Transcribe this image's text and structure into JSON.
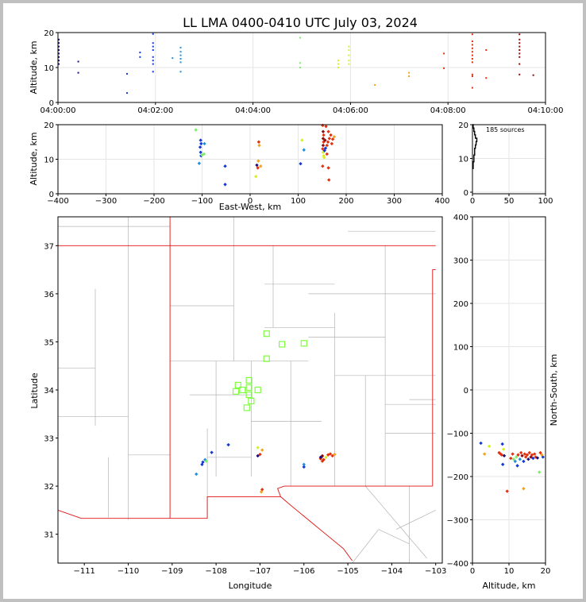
{
  "title": "LL LMA 0400-0410 UTC July 03, 2024",
  "colors": {
    "scheme": "time-rainbow",
    "ramp": [
      "#1a0f7a",
      "#1438d8",
      "#1f8fe0",
      "#7dec6a",
      "#d8f020",
      "#f4a11c",
      "#e4300e",
      "#8a0a0a"
    ],
    "state_lines": "#e01010",
    "county_lines": "#b4b4b4",
    "stations": "#7dff3c",
    "grid": "#e6e6e6"
  },
  "chart_data": [
    {
      "type": "scatter",
      "name": "altitude-vs-time",
      "xlabel": "",
      "ylabel": "Altitude, km",
      "xlim_seconds": [
        0,
        600
      ],
      "ylim": [
        0,
        20
      ],
      "xticks": [
        "04:00:00",
        "04:02:00",
        "04:04:00",
        "04:06:00",
        "04:08:00",
        "04:10:00"
      ],
      "yticks": [
        0,
        10,
        20
      ],
      "grid": true,
      "groups": [
        {
          "t": 1,
          "alt": [
            11,
            12,
            13,
            14,
            15,
            16,
            17,
            18
          ]
        },
        {
          "t": 25,
          "alt": [
            8.5,
            11.7
          ]
        },
        {
          "t": 85,
          "alt": [
            2.7,
            8.2
          ]
        },
        {
          "t": 101,
          "alt": [
            13,
            14.3
          ]
        },
        {
          "t": 117,
          "alt": [
            8.8,
            11,
            12,
            13,
            15,
            16,
            17,
            19.6
          ]
        },
        {
          "t": 141,
          "alt": [
            12.7
          ]
        },
        {
          "t": 151,
          "alt": [
            8.8,
            11.5,
            12.5,
            13.5,
            14.5,
            15.7
          ]
        },
        {
          "t": 298,
          "alt": [
            10,
            11.3,
            18.5
          ]
        },
        {
          "t": 345,
          "alt": [
            10,
            11,
            12
          ]
        },
        {
          "t": 358,
          "alt": [
            11,
            12,
            13.5,
            15,
            16
          ]
        },
        {
          "t": 390,
          "alt": [
            5
          ]
        },
        {
          "t": 432,
          "alt": [
            7.5,
            8.5
          ]
        },
        {
          "t": 475,
          "alt": [
            9.8,
            14
          ]
        },
        {
          "t": 510,
          "alt": [
            4.2,
            7.5,
            8,
            11.5,
            12.5,
            13.5,
            14.5,
            15.5,
            16.5,
            17.5,
            19.5
          ]
        },
        {
          "t": 527,
          "alt": [
            7,
            15
          ]
        },
        {
          "t": 568,
          "alt": [
            8,
            11,
            13,
            14,
            15,
            16,
            17,
            18,
            19.5
          ]
        },
        {
          "t": 585,
          "alt": [
            7.8
          ]
        }
      ]
    },
    {
      "type": "scatter",
      "name": "altitude-vs-east-west",
      "xlabel": "East-West, km",
      "ylabel": "Altitude, km",
      "xlim": [
        -400,
        400
      ],
      "ylim": [
        0,
        20
      ],
      "xticks": [
        -400,
        -300,
        -200,
        -100,
        0,
        100,
        200,
        300,
        400
      ],
      "yticks": [
        0,
        10,
        20
      ],
      "grid": true,
      "points": [
        {
          "x": -102,
          "y": 11,
          "t": 0.1
        },
        {
          "x": -103,
          "y": 12,
          "t": 0.1
        },
        {
          "x": -104,
          "y": 13.5,
          "t": 0.15
        },
        {
          "x": -102,
          "y": 14.5,
          "t": 0.2
        },
        {
          "x": -103,
          "y": 15.5,
          "t": 0.2
        },
        {
          "x": -95,
          "y": 14.5,
          "t": 0.25
        },
        {
          "x": -106,
          "y": 8.8,
          "t": 0.25
        },
        {
          "x": -100,
          "y": 11.2,
          "t": 0.4
        },
        {
          "x": -96,
          "y": 11.5,
          "t": 0.4
        },
        {
          "x": -113,
          "y": 18.5,
          "t": 0.4
        },
        {
          "x": -52,
          "y": 8,
          "t": 0.2
        },
        {
          "x": -52,
          "y": 2.7,
          "t": 0.15
        },
        {
          "x": 12,
          "y": 5,
          "t": 0.55
        },
        {
          "x": 14,
          "y": 8.3,
          "t": 0.05
        },
        {
          "x": 16,
          "y": 7.5,
          "t": 0.85
        },
        {
          "x": 17,
          "y": 9.5,
          "t": 0.7
        },
        {
          "x": 19,
          "y": 14,
          "t": 0.7
        },
        {
          "x": 18,
          "y": 15,
          "t": 0.9
        },
        {
          "x": 22,
          "y": 8,
          "t": 0.7
        },
        {
          "x": 105,
          "y": 8.7,
          "t": 0.2
        },
        {
          "x": 112,
          "y": 12.7,
          "t": 0.25
        },
        {
          "x": 108,
          "y": 15.5,
          "t": 0.5
        },
        {
          "x": 151,
          "y": 8,
          "t": 0.9
        },
        {
          "x": 153,
          "y": 11,
          "t": 0.5
        },
        {
          "x": 152,
          "y": 12,
          "t": 0.6
        },
        {
          "x": 151,
          "y": 13,
          "t": 0.9
        },
        {
          "x": 152,
          "y": 14,
          "t": 0.95
        },
        {
          "x": 153,
          "y": 15,
          "t": 0.9
        },
        {
          "x": 152,
          "y": 16,
          "t": 0.95
        },
        {
          "x": 153,
          "y": 17,
          "t": 0.9
        },
        {
          "x": 152,
          "y": 18,
          "t": 0.95
        },
        {
          "x": 151,
          "y": 19.8,
          "t": 0.85
        },
        {
          "x": 155,
          "y": 12.5,
          "t": 0.15
        },
        {
          "x": 157,
          "y": 13.2,
          "t": 0.1
        },
        {
          "x": 160,
          "y": 14,
          "t": 0.8
        },
        {
          "x": 162,
          "y": 15,
          "t": 0.8
        },
        {
          "x": 165,
          "y": 16,
          "t": 0.8
        },
        {
          "x": 168,
          "y": 17,
          "t": 0.8
        },
        {
          "x": 163,
          "y": 18,
          "t": 0.8
        },
        {
          "x": 158,
          "y": 19.5,
          "t": 0.8
        },
        {
          "x": 170,
          "y": 14.5,
          "t": 0.8
        },
        {
          "x": 172,
          "y": 15.8,
          "t": 0.8
        },
        {
          "x": 160,
          "y": 11.5,
          "t": 0.8
        },
        {
          "x": 163,
          "y": 7.5,
          "t": 0.8
        },
        {
          "x": 164,
          "y": 4,
          "t": 0.8
        },
        {
          "x": 175,
          "y": 16.5,
          "t": 0.75
        },
        {
          "x": 156,
          "y": 15.5,
          "t": 0.95
        },
        {
          "x": 154,
          "y": 10.5,
          "t": 0.55
        }
      ]
    },
    {
      "type": "histogram",
      "name": "altitude-histogram",
      "annotation": "185 sources",
      "xlim": [
        0,
        100
      ],
      "ylim": [
        0,
        20
      ],
      "xticks": [
        0,
        50,
        100
      ],
      "yticks": [
        0,
        10,
        20
      ],
      "grid": true,
      "bins": [
        {
          "alt": 7.5,
          "count": 1
        },
        {
          "alt": 8.5,
          "count": 1
        },
        {
          "alt": 9.5,
          "count": 2
        },
        {
          "alt": 10.5,
          "count": 2
        },
        {
          "alt": 11.5,
          "count": 3
        },
        {
          "alt": 12.5,
          "count": 3
        },
        {
          "alt": 13.5,
          "count": 4
        },
        {
          "alt": 14.5,
          "count": 5
        },
        {
          "alt": 15.5,
          "count": 6
        },
        {
          "alt": 16.5,
          "count": 4
        },
        {
          "alt": 17.5,
          "count": 3
        },
        {
          "alt": 18.5,
          "count": 2
        },
        {
          "alt": 19.5,
          "count": 1
        }
      ]
    },
    {
      "type": "map",
      "name": "plan-view",
      "xlabel": "Longitude",
      "ylabel": "Latitude",
      "xlim": [
        -111.6,
        -102.85
      ],
      "ylim": [
        30.4,
        37.6
      ],
      "xticks": [
        -111,
        -110,
        -109,
        -108,
        -107,
        -106,
        -105,
        -104,
        -103
      ],
      "yticks": [
        31,
        32,
        33,
        34,
        35,
        36,
        37
      ],
      "stations": [
        {
          "lon": -106.85,
          "lat": 35.17
        },
        {
          "lon": -106.5,
          "lat": 34.95
        },
        {
          "lon": -106.0,
          "lat": 34.97
        },
        {
          "lon": -106.85,
          "lat": 34.65
        },
        {
          "lon": -107.25,
          "lat": 34.2
        },
        {
          "lon": -107.5,
          "lat": 34.1
        },
        {
          "lon": -107.55,
          "lat": 33.97
        },
        {
          "lon": -107.4,
          "lat": 34.0
        },
        {
          "lon": -107.25,
          "lat": 34.05
        },
        {
          "lon": -107.05,
          "lat": 34.0
        },
        {
          "lon": -107.25,
          "lat": 33.9
        },
        {
          "lon": -107.2,
          "lat": 33.77
        },
        {
          "lon": -107.3,
          "lat": 33.63
        }
      ],
      "sources": [
        {
          "lon": -108.3,
          "lat": 32.5,
          "t": 0.1
        },
        {
          "lon": -108.32,
          "lat": 32.45,
          "t": 0.15
        },
        {
          "lon": -108.25,
          "lat": 32.55,
          "t": 0.35
        },
        {
          "lon": -108.22,
          "lat": 32.52,
          "t": 0.4
        },
        {
          "lon": -108.1,
          "lat": 32.7,
          "t": 0.2
        },
        {
          "lon": -108.45,
          "lat": 32.25,
          "t": 0.35
        },
        {
          "lon": -107.72,
          "lat": 32.86,
          "t": 0.15
        },
        {
          "lon": -107.05,
          "lat": 32.63,
          "t": 0.05
        },
        {
          "lon": -107.0,
          "lat": 32.66,
          "t": 0.85
        },
        {
          "lon": -106.95,
          "lat": 32.75,
          "t": 0.7
        },
        {
          "lon": -107.05,
          "lat": 32.8,
          "t": 0.55
        },
        {
          "lon": -106.95,
          "lat": 31.93,
          "t": 0.8
        },
        {
          "lon": -106.97,
          "lat": 31.88,
          "t": 0.75
        },
        {
          "lon": -106.0,
          "lat": 32.45,
          "t": 0.25
        },
        {
          "lon": -106.0,
          "lat": 32.4,
          "t": 0.2
        },
        {
          "lon": -105.6,
          "lat": 32.6,
          "t": 0.9
        },
        {
          "lon": -105.58,
          "lat": 32.63,
          "t": 0.95
        },
        {
          "lon": -105.62,
          "lat": 32.57,
          "t": 0.85
        },
        {
          "lon": -105.55,
          "lat": 32.55,
          "t": 0.9
        },
        {
          "lon": -105.58,
          "lat": 32.52,
          "t": 0.85
        },
        {
          "lon": -105.45,
          "lat": 32.65,
          "t": 0.8
        },
        {
          "lon": -105.4,
          "lat": 32.67,
          "t": 0.8
        },
        {
          "lon": -105.35,
          "lat": 32.63,
          "t": 0.8
        },
        {
          "lon": -105.3,
          "lat": 32.66,
          "t": 0.75
        },
        {
          "lon": -105.62,
          "lat": 32.6,
          "t": 0.05
        },
        {
          "lon": -105.5,
          "lat": 32.6,
          "t": 0.55
        }
      ]
    },
    {
      "type": "scatter",
      "name": "north-south-vs-altitude",
      "xlabel": "Altitude, km",
      "ylabel": "North-South, km",
      "xlim": [
        0,
        20
      ],
      "ylim": [
        -400,
        400
      ],
      "xticks": [
        0,
        10,
        20
      ],
      "yticks": [
        -400,
        -300,
        -200,
        -100,
        0,
        100,
        200,
        300,
        400
      ],
      "grid": true,
      "points": [
        {
          "x": 2.3,
          "y": -123,
          "t": 0.1
        },
        {
          "x": 3.3,
          "y": -148,
          "t": 0.75
        },
        {
          "x": 4.6,
          "y": -130,
          "t": 0.5
        },
        {
          "x": 7.3,
          "y": -145,
          "t": 0.8
        },
        {
          "x": 7.7,
          "y": -148,
          "t": 0.85
        },
        {
          "x": 8.0,
          "y": -150,
          "t": 0.9
        },
        {
          "x": 8.2,
          "y": -125,
          "t": 0.2
        },
        {
          "x": 8.3,
          "y": -172,
          "t": 0.2
        },
        {
          "x": 8.5,
          "y": -137,
          "t": 0.6
        },
        {
          "x": 8.7,
          "y": -152,
          "t": 0.05
        },
        {
          "x": 9.5,
          "y": -234,
          "t": 0.8
        },
        {
          "x": 10.5,
          "y": -158,
          "t": 0.85
        },
        {
          "x": 11.0,
          "y": -148,
          "t": 0.8
        },
        {
          "x": 11.3,
          "y": -160,
          "t": 0.4
        },
        {
          "x": 11.7,
          "y": -165,
          "t": 0.35
        },
        {
          "x": 12.0,
          "y": -155,
          "t": 0.45
        },
        {
          "x": 12.3,
          "y": -175,
          "t": 0.2
        },
        {
          "x": 12.5,
          "y": -150,
          "t": 0.9
        },
        {
          "x": 13.0,
          "y": -160,
          "t": 0.3
        },
        {
          "x": 13.3,
          "y": -145,
          "t": 0.8
        },
        {
          "x": 13.6,
          "y": -152,
          "t": 0.95
        },
        {
          "x": 14.0,
          "y": -165,
          "t": 0.15
        },
        {
          "x": 14.0,
          "y": -228,
          "t": 0.75
        },
        {
          "x": 14.3,
          "y": -148,
          "t": 0.8
        },
        {
          "x": 14.6,
          "y": -155,
          "t": 0.85
        },
        {
          "x": 15.0,
          "y": -150,
          "t": 0.9
        },
        {
          "x": 15.3,
          "y": -160,
          "t": 0.05
        },
        {
          "x": 15.6,
          "y": -145,
          "t": 0.8
        },
        {
          "x": 16.0,
          "y": -155,
          "t": 0.95
        },
        {
          "x": 16.3,
          "y": -150,
          "t": 0.8
        },
        {
          "x": 16.6,
          "y": -158,
          "t": 0.1
        },
        {
          "x": 17.0,
          "y": -148,
          "t": 0.8
        },
        {
          "x": 17.3,
          "y": -155,
          "t": 0.9
        },
        {
          "x": 17.8,
          "y": -157,
          "t": 0.05
        },
        {
          "x": 18.3,
          "y": -190,
          "t": 0.4
        },
        {
          "x": 18.6,
          "y": -145,
          "t": 0.8
        },
        {
          "x": 19.3,
          "y": -155,
          "t": 0.1
        },
        {
          "x": 19.0,
          "y": -150,
          "t": 0.7
        }
      ]
    }
  ]
}
